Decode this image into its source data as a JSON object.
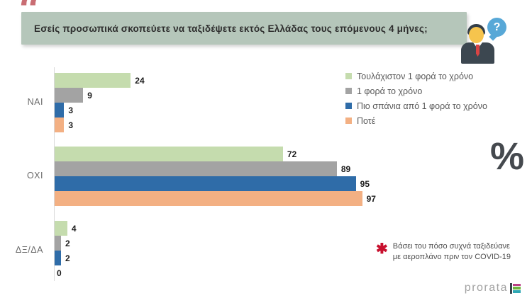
{
  "decorations": {
    "quote_mark": "“",
    "percent_symbol": "%",
    "question_bubble": "?"
  },
  "header": {
    "question": "Εσείς προσωπικά σκοπεύετε να ταξιδέψετε εκτός Ελλάδας τους επόμενους 4 μήνες;"
  },
  "chart_data": {
    "type": "bar",
    "orientation": "horizontal",
    "unit": "percent",
    "title": "",
    "categories": [
      "ΝΑΙ",
      "ΟΧΙ",
      "ΔΞ/ΔΑ"
    ],
    "series": [
      {
        "name": "Τουλάχιστον 1 φορά το χρόνο",
        "color": "#c5dcae",
        "values": [
          24,
          72,
          4
        ]
      },
      {
        "name": "1 φορά το χρόνο",
        "color": "#a3a3a3",
        "values": [
          9,
          89,
          2
        ]
      },
      {
        "name": "Πιο σπάνια από 1 φορά το χρόνο",
        "color": "#2f6ca8",
        "values": [
          3,
          95,
          2
        ]
      },
      {
        "name": "Ποτέ",
        "color": "#f3b083",
        "values": [
          3,
          97,
          0
        ]
      }
    ],
    "xlim": [
      0,
      100
    ],
    "value_labels": true,
    "gridlines": false,
    "legend_position": "top-right"
  },
  "footnote": {
    "asterisk": "✱",
    "line1": "Βάσει του πόσο συχνά ταξιδεύανε",
    "line2": "με αεροπλάνο πριν τον COVID-19"
  },
  "logo": {
    "text": "prorata",
    "stripe_colors": [
      "#bb3f86",
      "#6fb53e",
      "#2fa8b4"
    ],
    "bar_color": "#39424a"
  },
  "colors": {
    "title_box": "#b5c6ba",
    "quote": "#c96d73",
    "axis_line": "#d9d9d9",
    "category_label": "#6a6a6a",
    "value_label": "#1c1c1c",
    "legend_text": "#595959",
    "footnote_text": "#4f4f4f",
    "asterisk": "#c8102e",
    "percent_symbol": "#45494e",
    "bubble": "#58a8d7"
  }
}
